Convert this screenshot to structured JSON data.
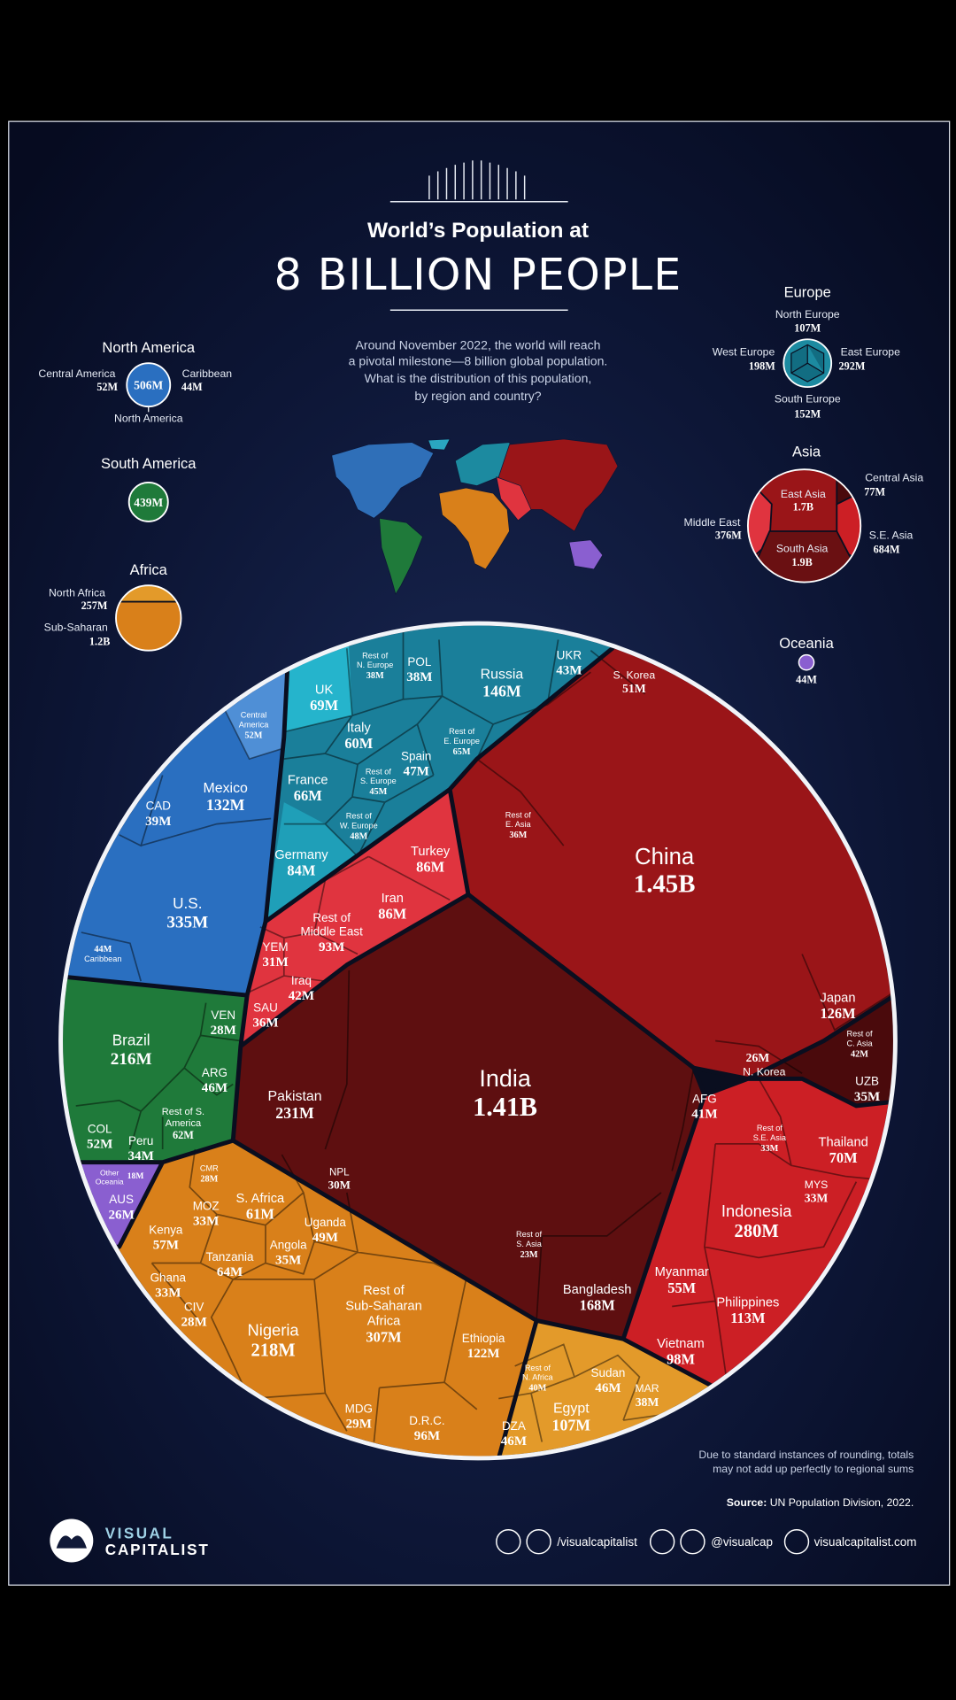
{
  "header": {
    "title": "World’s Population at",
    "headline": "8 BILLION PEOPLE",
    "intro": [
      "Around November 2022, the world will reach",
      "a pivotal milestone—8 billion global population.",
      "What is the distribution of this population,",
      "by region and country?"
    ]
  },
  "regions": {
    "north_america": {
      "title": "North America",
      "total": "506M",
      "parts": [
        {
          "name": "Central America",
          "value": "52M"
        },
        {
          "name": "Caribbean",
          "value": "44M"
        }
      ],
      "center_label": "North America"
    },
    "south_america": {
      "title": "South America",
      "total": "439M"
    },
    "africa": {
      "title": "Africa",
      "parts": [
        {
          "name": "North Africa",
          "value": "257M"
        },
        {
          "name": "Sub-Saharan",
          "value": "1.2B"
        }
      ]
    },
    "europe": {
      "title": "Europe",
      "parts": [
        {
          "name": "North Europe",
          "value": "107M"
        },
        {
          "name": "West Europe",
          "value": "198M"
        },
        {
          "name": "East Europe",
          "value": "292M"
        },
        {
          "name": "South Europe",
          "value": "152M"
        }
      ]
    },
    "asia": {
      "title": "Asia",
      "parts": [
        {
          "name": "East Asia",
          "value": "1.7B"
        },
        {
          "name": "Central Asia",
          "value": "77M"
        },
        {
          "name": "Middle East",
          "value": "376M"
        },
        {
          "name": "S.E. Asia",
          "value": "684M"
        },
        {
          "name": "South Asia",
          "value": "1.9B"
        }
      ]
    },
    "oceania": {
      "title": "Oceania",
      "total": "44M"
    }
  },
  "cells": [
    {
      "name": [
        "Rest of",
        "N. Europe"
      ],
      "value": "38M"
    },
    {
      "name": [
        "POL"
      ],
      "value": "38M"
    },
    {
      "name": [
        "Russia"
      ],
      "value": "146M"
    },
    {
      "name": [
        "UKR"
      ],
      "value": "43M"
    },
    {
      "name": [
        "UK"
      ],
      "value": "69M"
    },
    {
      "name": [
        "Italy"
      ],
      "value": "60M"
    },
    {
      "name": [
        "Spain"
      ],
      "value": "47M"
    },
    {
      "name": [
        "Rest of",
        "E. Europe"
      ],
      "value": "65M"
    },
    {
      "name": [
        "France"
      ],
      "value": "66M"
    },
    {
      "name": [
        "Rest of",
        "S. Europe"
      ],
      "value": "45M"
    },
    {
      "name": [
        "Rest of",
        "W. Europe"
      ],
      "value": "48M"
    },
    {
      "name": [
        "Germany"
      ],
      "value": "84M"
    },
    {
      "name": [
        "Central",
        "America"
      ],
      "value": "52M"
    },
    {
      "name": [
        "Mexico"
      ],
      "value": "132M"
    },
    {
      "name": [
        "CAD"
      ],
      "value": "39M"
    },
    {
      "name": [
        "U.S."
      ],
      "value": "335M"
    },
    {
      "name": [
        "Caribbean"
      ],
      "value": "44M"
    },
    {
      "name": [
        "Brazil"
      ],
      "value": "216M"
    },
    {
      "name": [
        "VEN"
      ],
      "value": "28M"
    },
    {
      "name": [
        "ARG"
      ],
      "value": "46M"
    },
    {
      "name": [
        "COL"
      ],
      "value": "52M"
    },
    {
      "name": [
        "Peru"
      ],
      "value": "34M"
    },
    {
      "name": [
        "Rest of S.",
        "America"
      ],
      "value": "62M"
    },
    {
      "name": [
        "Other",
        "Oceania"
      ],
      "value": "18M"
    },
    {
      "name": [
        "AUS"
      ],
      "value": "26M"
    },
    {
      "name": [
        "Turkey"
      ],
      "value": "86M"
    },
    {
      "name": [
        "Iran"
      ],
      "value": "86M"
    },
    {
      "name": [
        "Rest of",
        "Middle East"
      ],
      "value": "93M"
    },
    {
      "name": [
        "YEM"
      ],
      "value": "31M"
    },
    {
      "name": [
        "Iraq"
      ],
      "value": "42M"
    },
    {
      "name": [
        "SAU"
      ],
      "value": "36M"
    },
    {
      "name": [
        "S. Korea"
      ],
      "value": "51M"
    },
    {
      "name": [
        "China"
      ],
      "value": "1.45B"
    },
    {
      "name": [
        "Rest of",
        "E. Asia"
      ],
      "value": "36M"
    },
    {
      "name": [
        "Japan"
      ],
      "value": "126M"
    },
    {
      "name": [
        "N. Korea"
      ],
      "value": "26M"
    },
    {
      "name": [
        "Rest of",
        "C. Asia"
      ],
      "value": "42M"
    },
    {
      "name": [
        "UZB"
      ],
      "value": "35M"
    },
    {
      "name": [
        "India"
      ],
      "value": "1.41B"
    },
    {
      "name": [
        "Pakistan"
      ],
      "value": "231M"
    },
    {
      "name": [
        "AFG"
      ],
      "value": "41M"
    },
    {
      "name": [
        "NPL"
      ],
      "value": "30M"
    },
    {
      "name": [
        "Rest of",
        "S. Asia"
      ],
      "value": "23M"
    },
    {
      "name": [
        "Bangladesh"
      ],
      "value": "168M"
    },
    {
      "name": [
        "Rest of",
        "S.E. Asia"
      ],
      "value": "33M"
    },
    {
      "name": [
        "Thailand"
      ],
      "value": "70M"
    },
    {
      "name": [
        "MYS"
      ],
      "value": "33M"
    },
    {
      "name": [
        "Indonesia"
      ],
      "value": "280M"
    },
    {
      "name": [
        "Myanmar"
      ],
      "value": "55M"
    },
    {
      "name": [
        "Philippines"
      ],
      "value": "113M"
    },
    {
      "name": [
        "Vietnam"
      ],
      "value": "98M"
    },
    {
      "name": [
        "CMR"
      ],
      "value": "28M"
    },
    {
      "name": [
        "S. Africa"
      ],
      "value": "61M"
    },
    {
      "name": [
        "MOZ"
      ],
      "value": "33M"
    },
    {
      "name": [
        "Uganda"
      ],
      "value": "49M"
    },
    {
      "name": [
        "Kenya"
      ],
      "value": "57M"
    },
    {
      "name": [
        "Tanzania"
      ],
      "value": "64M"
    },
    {
      "name": [
        "Angola"
      ],
      "value": "35M"
    },
    {
      "name": [
        "Ghana"
      ],
      "value": "33M"
    },
    {
      "name": [
        "CIV"
      ],
      "value": "28M"
    },
    {
      "name": [
        "Nigeria"
      ],
      "value": "218M"
    },
    {
      "name": [
        "Rest of",
        "Sub-Saharan",
        "Africa"
      ],
      "value": "307M"
    },
    {
      "name": [
        "Ethiopia"
      ],
      "value": "122M"
    },
    {
      "name": [
        "MDG"
      ],
      "value": "29M"
    },
    {
      "name": [
        "D.R.C."
      ],
      "value": "96M"
    },
    {
      "name": [
        "Rest of",
        "N. Africa"
      ],
      "value": "40M"
    },
    {
      "name": [
        "Sudan"
      ],
      "value": "46M"
    },
    {
      "name": [
        "Egypt"
      ],
      "value": "107M"
    },
    {
      "name": [
        "MAR"
      ],
      "value": "38M"
    },
    {
      "name": [
        "DZA"
      ],
      "value": "46M"
    }
  ],
  "footer": {
    "note": [
      "Due to standard instances of rounding, totals",
      "may not add up perfectly to regional sums"
    ],
    "source_label": "Source:",
    "source": "UN Population Division, 2022.",
    "brand": [
      "VISUAL",
      "CAPITALIST"
    ],
    "social": [
      "/visualcapitalist",
      "@visualcap",
      "visualcapitalist.com"
    ]
  }
}
